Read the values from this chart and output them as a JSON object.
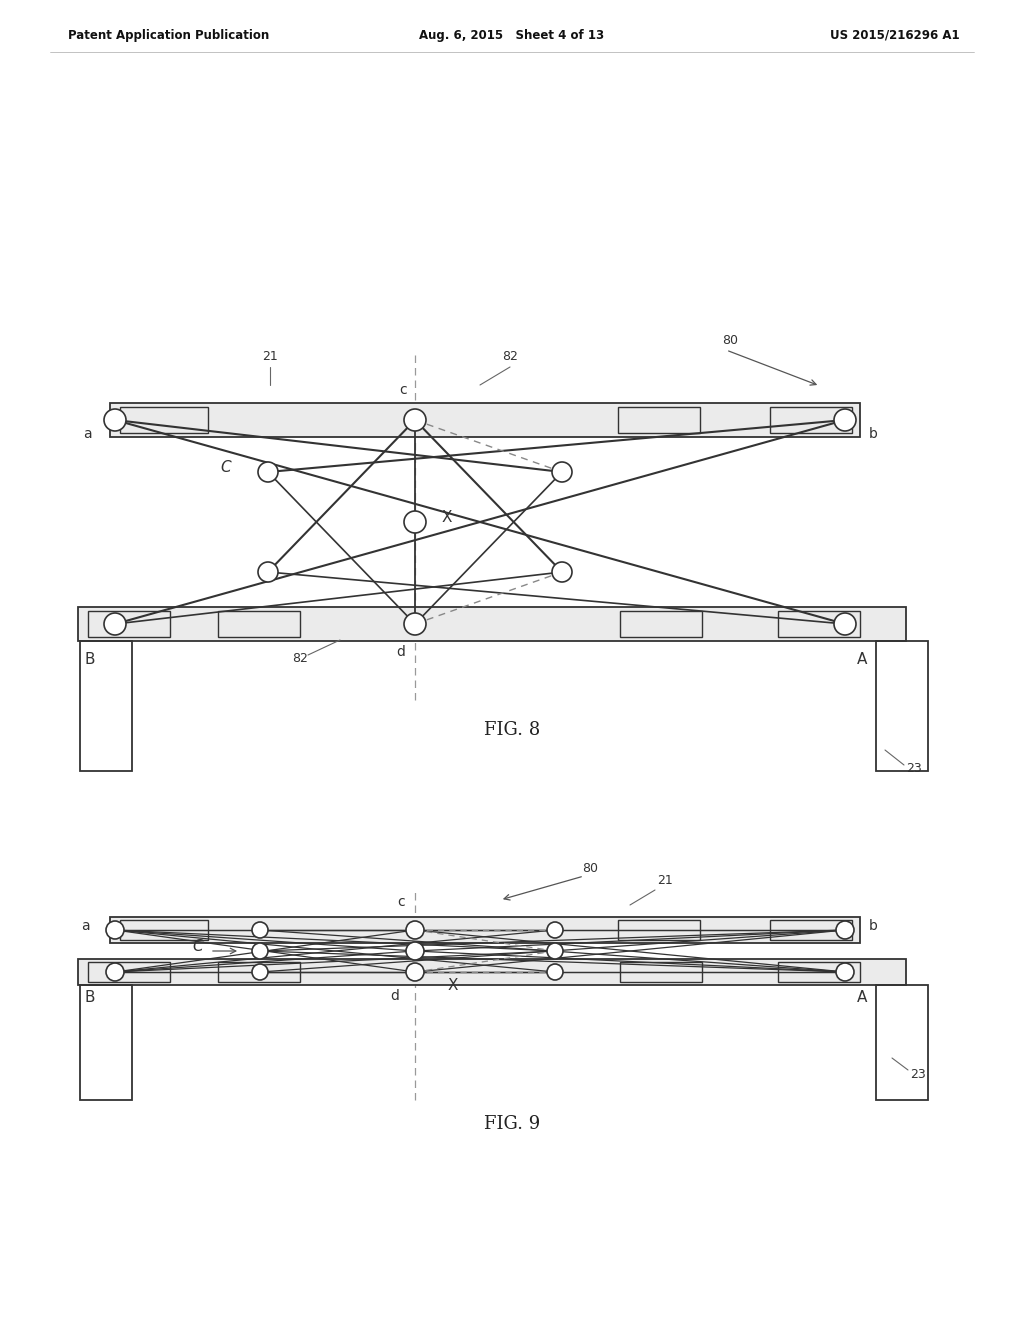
{
  "bg_color": "#ffffff",
  "line_color": "#333333",
  "dashed_color": "#888888",
  "header": {
    "left": "Patent Application Publication",
    "center": "Aug. 6, 2015   Sheet 4 of 13",
    "right": "US 2015/216296 A1"
  }
}
